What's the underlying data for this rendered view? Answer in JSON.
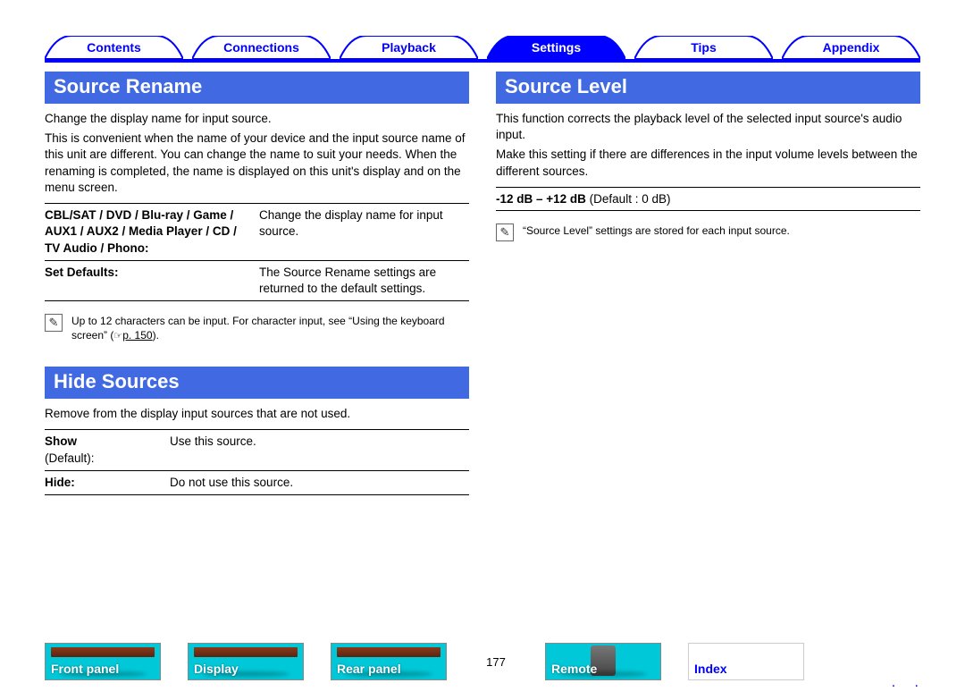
{
  "nav": {
    "tabs": [
      {
        "label": "Contents",
        "active": false
      },
      {
        "label": "Connections",
        "active": false
      },
      {
        "label": "Playback",
        "active": false
      },
      {
        "label": "Settings",
        "active": true
      },
      {
        "label": "Tips",
        "active": false
      },
      {
        "label": "Appendix",
        "active": false
      }
    ],
    "outline_color": "#0000ff",
    "active_fill": "#0000ff",
    "active_text": "#ffffff",
    "inactive_text": "#0000ff"
  },
  "left": {
    "s1": {
      "title": "Source Rename",
      "p1": "Change the display name for input source.",
      "p2": "This is convenient when the name of your device and the input source name of this unit are different. You can change the name to suit your needs. When the renaming is completed, the name is displayed on this unit's display and on the menu screen.",
      "row1_label": "CBL/SAT / DVD / Blu-ray / Game / AUX1 / AUX2 / Media Player / CD / TV Audio / Phono:",
      "row1_value": "Change the display name for input source.",
      "row2_label": "Set Defaults:",
      "row2_value": "The Source Rename settings are returned to the default settings.",
      "note_pre": "Up to 12 characters can be input. For character input, see “Using the keyboard screen” (",
      "note_link": "p. 150",
      "note_post": ")."
    },
    "s2": {
      "title": "Hide Sources",
      "p1": "Remove from the display input sources that are not used.",
      "row1_label": "Show",
      "row1_sub": "(Default):",
      "row1_value": "Use this source.",
      "row2_label": "Hide:",
      "row2_value": "Do not use this source."
    }
  },
  "right": {
    "s1": {
      "title": "Source Level",
      "p1": "This function corrects the playback level of the selected input source's audio input.",
      "p2": "Make this setting if there are differences in the input volume levels between the different sources.",
      "range_bold": "-12 dB – +12 dB",
      "range_rest": " (Default : 0 dB)",
      "note": "“Source Level” settings are stored for each input source."
    }
  },
  "bottom": {
    "thumbs": [
      {
        "label": "Front panel",
        "kind": "panel"
      },
      {
        "label": "Display",
        "kind": "panel"
      },
      {
        "label": "Rear panel",
        "kind": "panel"
      }
    ],
    "page": "177",
    "thumbs2": [
      {
        "label": "Remote",
        "kind": "remote"
      },
      {
        "label": "Index",
        "kind": "index"
      }
    ]
  },
  "colors": {
    "header_bg": "#4169e1",
    "accent": "#0000ff",
    "thumb_bg": "#00c8d8"
  }
}
